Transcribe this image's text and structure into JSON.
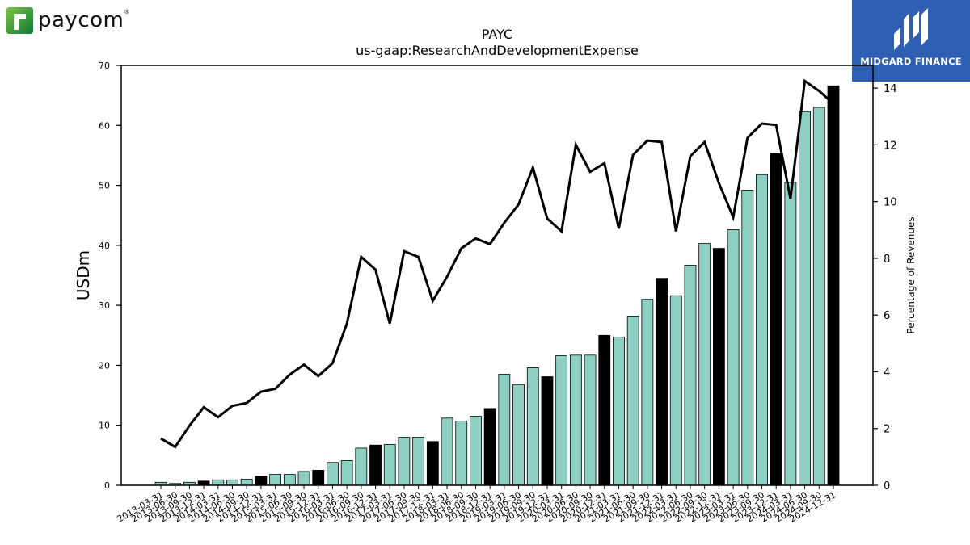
{
  "brand": {
    "logo_text": "paycom",
    "logo_reg": "®",
    "partner_name": "MIDGARD FINANCE",
    "accent_colors": {
      "paycom_green": "#1f8a3a",
      "midgard_blue": "#2f5fb3"
    }
  },
  "chart_data": {
    "type": "bar",
    "title": "PAYC",
    "subtitle": "us-gaap:ResearchAndDevelopmentExpense",
    "ylabel": "USDm",
    "y2label": "Percentage of Revenues",
    "ylim": [
      0,
      70
    ],
    "y2lim": [
      0,
      14.8
    ],
    "yticks": [
      0,
      10,
      20,
      30,
      40,
      50,
      60,
      70
    ],
    "y2ticks": [
      0,
      2,
      4,
      6,
      8,
      10,
      12,
      14
    ],
    "colors": {
      "quarter_bar": "#8ecfc4",
      "annual_bar": "#000000",
      "line": "#000000"
    },
    "categories": [
      "2013-03-31",
      "2013-06-30",
      "2013-09-30",
      "2013-12-31",
      "2014-03-31",
      "2014-06-30",
      "2014-09-30",
      "2014-12-31",
      "2015-03-31",
      "2015-06-30",
      "2015-09-30",
      "2015-12-31",
      "2016-03-31",
      "2016-06-30",
      "2016-09-30",
      "2016-12-31",
      "2017-03-31",
      "2017-06-30",
      "2017-09-30",
      "2017-12-31",
      "2018-03-31",
      "2018-06-30",
      "2018-09-30",
      "2018-12-31",
      "2019-03-31",
      "2019-06-30",
      "2019-09-30",
      "2019-12-31",
      "2020-03-31",
      "2020-06-30",
      "2020-09-30",
      "2020-12-31",
      "2021-03-31",
      "2021-06-30",
      "2021-09-30",
      "2021-12-31",
      "2022-03-31",
      "2022-06-30",
      "2022-09-30",
      "2022-12-31",
      "2023-03-31",
      "2023-06-30",
      "2023-09-30",
      "2023-12-31",
      "2024-03-31",
      "2024-06-30",
      "2024-09-30",
      "2024-12-31"
    ],
    "series": [
      {
        "role": "bars",
        "values": [
          0.5,
          0.3,
          0.5,
          0.7,
          0.9,
          0.9,
          1.0,
          1.5,
          1.8,
          1.8,
          2.3,
          2.5,
          3.8,
          4.1,
          6.2,
          6.7,
          6.8,
          8.0,
          8.0,
          7.3,
          11.2,
          10.7,
          11.5,
          12.8,
          18.5,
          16.8,
          19.6,
          18.1,
          21.6,
          21.7,
          21.7,
          25.0,
          24.7,
          28.2,
          31.0,
          34.5,
          31.6,
          36.7,
          40.3,
          39.5,
          42.6,
          49.2,
          51.8,
          55.3,
          50.5,
          62.3,
          63.0,
          66.6
        ],
        "annual": [
          false,
          false,
          false,
          true,
          false,
          false,
          false,
          true,
          false,
          false,
          false,
          true,
          false,
          false,
          false,
          true,
          false,
          false,
          false,
          true,
          false,
          false,
          false,
          true,
          false,
          false,
          false,
          true,
          false,
          false,
          false,
          true,
          false,
          false,
          false,
          true,
          false,
          false,
          false,
          true,
          false,
          false,
          false,
          true,
          false,
          false,
          false,
          true
        ]
      },
      {
        "role": "line",
        "axis": "right",
        "values": [
          1.65,
          1.35,
          2.1,
          2.75,
          2.4,
          2.8,
          2.9,
          3.3,
          3.4,
          3.9,
          4.25,
          3.85,
          4.3,
          5.7,
          8.05,
          7.6,
          5.7,
          8.25,
          8.05,
          6.5,
          7.35,
          8.35,
          8.7,
          8.5,
          9.25,
          9.9,
          11.2,
          9.4,
          8.95,
          12.0,
          11.05,
          11.35,
          9.05,
          11.65,
          12.15,
          12.1,
          8.95,
          11.6,
          12.1,
          10.65,
          9.45,
          12.25,
          12.75,
          12.7,
          10.1,
          14.25,
          13.9,
          13.45
        ]
      }
    ]
  }
}
